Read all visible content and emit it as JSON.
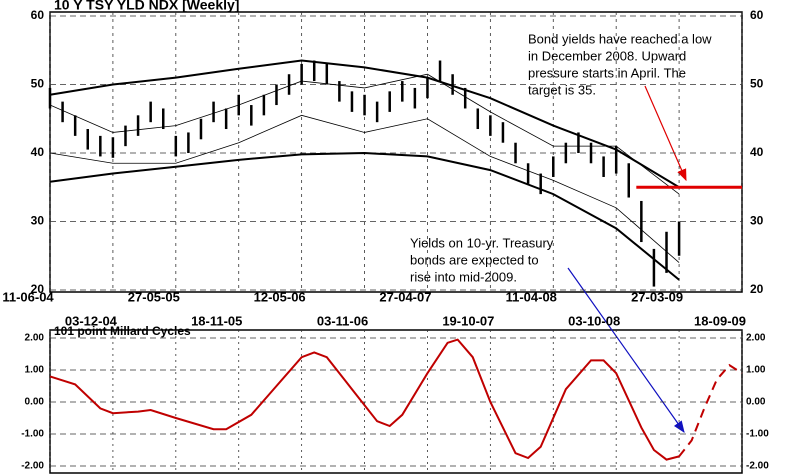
{
  "chart_data": [
    {
      "type": "ohlc",
      "title": "10 Y TSY YLD NDX  [Weekly]",
      "x": [
        0,
        5,
        10,
        15,
        20,
        25,
        30,
        35,
        40,
        45,
        50,
        55,
        60,
        65,
        70,
        75,
        80,
        85,
        90,
        95,
        100,
        105,
        110,
        115,
        120,
        125,
        130,
        135,
        140,
        145,
        150,
        155,
        160,
        165,
        170,
        175,
        180,
        185,
        190,
        195,
        200,
        205,
        210,
        215,
        220,
        225,
        230,
        235,
        240,
        245,
        250
      ],
      "high": [
        49.5,
        47.5,
        45.5,
        43.5,
        42.5,
        42.3,
        44,
        45.5,
        47.5,
        46.5,
        42.5,
        43,
        45,
        47.5,
        46.5,
        48.5,
        47,
        48.5,
        50,
        51.5,
        53,
        53.5,
        53,
        50.5,
        49,
        48.5,
        47.5,
        49,
        50.5,
        49.5,
        51,
        53.5,
        51.5,
        49.5,
        46.5,
        45.5,
        44.5,
        41.5,
        38.5,
        37,
        39.5,
        41.5,
        43,
        41.5,
        39.5,
        41,
        38.5,
        33,
        26,
        28.5,
        30
      ],
      "low": [
        46.5,
        44.5,
        42.5,
        40.5,
        39.5,
        39.3,
        41,
        42.5,
        44.5,
        43.5,
        39.5,
        40,
        42,
        44.5,
        43.5,
        45.5,
        44,
        45.5,
        47,
        48.5,
        50,
        50.5,
        50,
        47.5,
        46,
        45.5,
        44.5,
        46,
        47.5,
        46.5,
        48,
        50.5,
        48.5,
        46.5,
        43.5,
        42.5,
        41.5,
        38.5,
        35.5,
        34,
        36.5,
        38.5,
        40,
        38.5,
        36.5,
        37,
        33.5,
        27,
        20.5,
        22.5,
        25
      ],
      "color": "#000000",
      "bands": {
        "x": [
          0,
          25,
          50,
          75,
          100,
          125,
          150,
          175,
          200,
          225,
          250
        ],
        "lines": [
          {
            "color": "#000000",
            "width": 2,
            "values": [
              48.5,
              50,
              51,
              52.3,
              53.5,
              52.5,
              51,
              48,
              44,
              40.5,
              35
            ]
          },
          {
            "color": "#000000",
            "width": 2,
            "values": [
              35.8,
              37,
              38,
              39,
              39.8,
              40,
              39.5,
              37.5,
              34,
              29,
              21.5
            ]
          },
          {
            "color": "#000000",
            "width": 0.8,
            "values": [
              47,
              43,
              44,
              47,
              50.5,
              49.5,
              51.5,
              46,
              41,
              41,
              34
            ]
          },
          {
            "color": "#000000",
            "width": 0.8,
            "values": [
              40,
              38.5,
              38.5,
              41.5,
              45.5,
              43,
              45,
              39.5,
              36,
              32,
              24
            ]
          }
        ]
      },
      "target": {
        "value": 35,
        "x": [
          233,
          275
        ],
        "color": "#e00000"
      },
      "xlim": [
        0,
        275
      ],
      "xticks": [
        {
          "value": 0,
          "label": "11-06-04"
        },
        {
          "value": 25,
          "label": "03-12-04"
        },
        {
          "value": 50,
          "label": "27-05-05"
        },
        {
          "value": 75,
          "label": "18-11-05"
        },
        {
          "value": 100,
          "label": "12-05-06"
        },
        {
          "value": 125,
          "label": "03-11-06"
        },
        {
          "value": 150,
          "label": "27-04-07"
        },
        {
          "value": 175,
          "label": "19-10-07"
        },
        {
          "value": 200,
          "label": "11-04-08"
        },
        {
          "value": 225,
          "label": "03-10-08"
        },
        {
          "value": 250,
          "label": "27-03-09"
        },
        {
          "value": 275,
          "label": "18-09-09"
        }
      ],
      "ylim": [
        20,
        60
      ],
      "yticks": [
        20,
        30,
        40,
        50,
        60
      ],
      "annotations": [
        {
          "color": "#d00000",
          "lines": [
            "Bond yields have reached a low",
            "in December 2008.  Upward",
            "pressure starts in April.  The",
            "target is 35."
          ]
        },
        {
          "color": "#1010c0",
          "lines": [
            "Yields on 10-yr. Treasury",
            "bonds are expected to",
            "rise into mid-2009."
          ]
        }
      ]
    },
    {
      "type": "line",
      "title": "101 point Millard Cycles",
      "series": [
        {
          "color": "#c00000",
          "style": "solid",
          "x": [
            0,
            10,
            20,
            25,
            35,
            40,
            50,
            65,
            70,
            80,
            90,
            100,
            105,
            110,
            120,
            130,
            135,
            140,
            150,
            158,
            162,
            168,
            175,
            185,
            190,
            195,
            205,
            215,
            220,
            225,
            235,
            240,
            245,
            250
          ],
          "values": [
            0.8,
            0.55,
            -0.2,
            -0.35,
            -0.3,
            -0.25,
            -0.5,
            -0.85,
            -0.85,
            -0.4,
            0.5,
            1.4,
            1.55,
            1.4,
            0.4,
            -0.6,
            -0.75,
            -0.4,
            0.9,
            1.85,
            1.95,
            1.4,
            0,
            -1.6,
            -1.75,
            -1.4,
            0.4,
            1.3,
            1.3,
            0.9,
            -0.8,
            -1.5,
            -1.8,
            -1.7
          ]
        },
        {
          "color": "#c00000",
          "style": "dashed",
          "x": [
            250,
            255,
            260,
            265,
            270,
            275
          ],
          "values": [
            -1.7,
            -1.2,
            -0.2,
            0.7,
            1.15,
            0.9
          ]
        }
      ],
      "xlim": [
        0,
        275
      ],
      "ylim": [
        -2,
        2
      ],
      "yticks": [
        {
          "value": -2,
          "label": "-2.00"
        },
        {
          "value": -1,
          "label": "-1.00"
        },
        {
          "value": 0,
          "label": "0.00"
        },
        {
          "value": 1,
          "label": "1.00"
        },
        {
          "value": 2,
          "label": "2.00"
        }
      ]
    }
  ]
}
